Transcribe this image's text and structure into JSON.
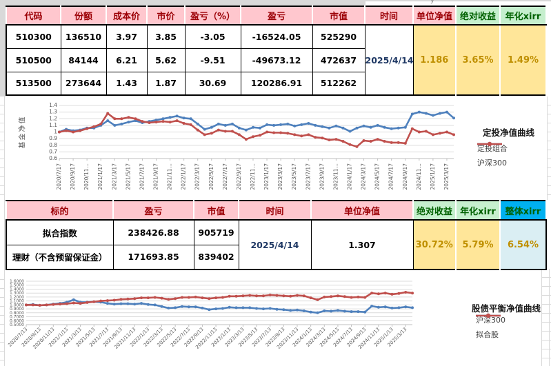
{
  "window": {
    "artifact_top_right": "y"
  },
  "colors": {
    "header_pink": "#FFC7CE",
    "header_red_text": "#9C0006",
    "header_green": "#C6EFCE",
    "green_text": "#006100",
    "overall_header_blue": "#00B0F0",
    "overall_value_bg": "#DAEEF3",
    "value_yellow_bg": "#FFE699",
    "value_orange_text": "#BF8F00",
    "date_text": "#1F3864",
    "series_blue": "#4F81BD",
    "series_red": "#C0504D",
    "gridline": "#D9D9D9"
  },
  "table1": {
    "headers": {
      "code": "代码",
      "shares": "份额",
      "cost": "成本价",
      "price": "市价",
      "pl_pct": "盈亏（%）",
      "pl": "盈亏",
      "mv": "市值",
      "time": "时间",
      "nav": "单位净值",
      "abs": "绝对收益",
      "xirr": "年化xirr"
    },
    "rows": [
      {
        "code": "510300",
        "shares": "136510",
        "cost": "3.97",
        "price": "3.85",
        "pl_pct": "-3.05",
        "pl": "-16524.05",
        "mv": "525290"
      },
      {
        "code": "510500",
        "shares": "84144",
        "cost": "6.21",
        "price": "5.62",
        "pl_pct": "-9.51",
        "pl": "-49673.12",
        "mv": "472637"
      },
      {
        "code": "513500",
        "shares": "273644",
        "cost": "1.43",
        "price": "1.87",
        "pl_pct": "30.69",
        "pl": "120286.91",
        "mv": "512262"
      }
    ],
    "time": "2025/4/14",
    "nav": "1.186",
    "abs": "3.65%",
    "xirr": "1.49%"
  },
  "table2": {
    "headers": {
      "name": "标的",
      "pl": "盈亏",
      "mv": "市值",
      "time": "时间",
      "nav": "单位净值",
      "abs": "绝对收益",
      "xirr": "年化xirr",
      "overall": "整体xirr"
    },
    "rows": [
      {
        "name": "拟合指数",
        "pl": "238426.88",
        "mv": "905719"
      },
      {
        "name": "理财（不含预留保证金）",
        "pl": "171693.85",
        "mv": "839402"
      }
    ],
    "time": "2025/4/14",
    "nav": "1.307",
    "abs": "30.72%",
    "xirr": "5.79%",
    "overall": "6.54%"
  },
  "chart_data": [
    {
      "type": "line",
      "title": "定投净值曲线",
      "ylabel": "基金净值",
      "ylim": [
        0.6,
        1.4
      ],
      "x_total_steps": 57,
      "grid": true,
      "legend_position": "right",
      "yticks": [
        "1.4",
        "1.3",
        "1.2",
        "1.1",
        "1",
        "0.9",
        "0.8",
        "0.7",
        "0.6"
      ],
      "xticklabels": [
        "2020/7/17",
        "2020/9/17",
        "2020/11…",
        "2021/1/17",
        "2021/3/17",
        "2021/5/17",
        "2021/7/17",
        "2021/9/17",
        "2021/11…",
        "2022/1/17",
        "2022/3/17",
        "2022/5/17",
        "2022/7/17",
        "2022/9/17",
        "2022/11…",
        "2023/1/17",
        "2023/3/17",
        "2023/5/17",
        "2023/7/17",
        "2023/9/17",
        "2023/11…",
        "2024/1/17",
        "2024/3/17",
        "2024/5/17",
        "2024/7/17",
        "2024/9/17",
        "2024/11…",
        "2025/1/17",
        "2025/3/17"
      ],
      "series": [
        {
          "name": "定投组合",
          "color": "#4F81BD",
          "values": [
            1.0,
            1.04,
            1.02,
            1.03,
            1.06,
            1.06,
            1.1,
            1.17,
            1.1,
            1.12,
            1.15,
            1.17,
            1.14,
            1.16,
            1.18,
            1.2,
            1.22,
            1.24,
            1.21,
            1.2,
            1.12,
            1.04,
            1.07,
            1.12,
            1.1,
            1.12,
            1.06,
            1.03,
            1.07,
            1.06,
            1.11,
            1.1,
            1.11,
            1.12,
            1.09,
            1.11,
            1.13,
            1.1,
            1.08,
            1.06,
            1.09,
            1.06,
            1.01,
            1.06,
            1.09,
            1.07,
            1.1,
            1.07,
            1.05,
            1.06,
            1.07,
            1.27,
            1.3,
            1.28,
            1.25,
            1.28,
            1.3,
            1.21
          ]
        },
        {
          "name": "沪深300",
          "color": "#C0504D",
          "values": [
            1.0,
            1.02,
            1.0,
            1.02,
            1.05,
            1.08,
            1.12,
            1.28,
            1.2,
            1.2,
            1.22,
            1.2,
            1.16,
            1.14,
            1.15,
            1.16,
            1.15,
            1.17,
            1.13,
            1.11,
            1.03,
            0.96,
            0.98,
            1.03,
            1.01,
            1.01,
            0.96,
            0.89,
            0.93,
            0.95,
            1.0,
            0.99,
            0.99,
            0.98,
            0.96,
            0.94,
            0.96,
            0.92,
            0.91,
            0.88,
            0.89,
            0.86,
            0.81,
            0.78,
            0.87,
            0.86,
            0.89,
            0.86,
            0.84,
            0.84,
            0.83,
            1.05,
            1.0,
            1.01,
            0.96,
            0.98,
            1.0,
            0.96
          ]
        }
      ]
    },
    {
      "type": "line",
      "title": "股债平衡净值曲线",
      "ylabel": "",
      "ylim": [
        0.5,
        1.6
      ],
      "x_total_steps": 57,
      "grid": true,
      "legend_position": "right",
      "yticks": [
        "1.6000",
        "1.5000",
        "1.4000",
        "1.3000",
        "1.2000",
        "1.1000",
        "1.0000",
        "0.9000",
        "0.8000",
        "0.7000",
        "0.6000",
        "0.5000"
      ],
      "xticklabels": [
        "2020/7/13",
        "2020/9/13",
        "2020/11/13",
        "2021/1/13",
        "2021/3/13",
        "2021/5/13",
        "2021/7/13",
        "2021/9/13",
        "2021/11/13",
        "2022/1/13",
        "2022/3/13",
        "2022/5/13",
        "2022/7/13",
        "2022/9/13",
        "2022/11/13",
        "2023/1/13",
        "2023/3/13",
        "2023/5/13",
        "2023/7/13",
        "2023/9/13",
        "2023/11/13",
        "2024/1/13",
        "2024/3/13",
        "2024/5/13",
        "2024/7/13",
        "2024/9/13",
        "2024/11/13",
        "2025/1/13",
        "2025/3/13"
      ],
      "series": [
        {
          "name": "沪深300",
          "color": "#4F81BD",
          "values": [
            1.0,
            1.01,
            0.99,
            1.0,
            1.02,
            1.04,
            1.07,
            1.13,
            1.07,
            1.07,
            1.08,
            1.07,
            1.04,
            1.02,
            1.03,
            1.03,
            1.02,
            1.04,
            1.01,
            1.0,
            0.96,
            0.92,
            0.93,
            0.96,
            0.95,
            0.95,
            0.92,
            0.88,
            0.9,
            0.91,
            0.94,
            0.93,
            0.93,
            0.93,
            0.91,
            0.9,
            0.91,
            0.89,
            0.88,
            0.86,
            0.87,
            0.85,
            0.82,
            0.8,
            0.85,
            0.84,
            0.86,
            0.84,
            0.83,
            0.83,
            0.82,
            0.97,
            0.94,
            0.95,
            0.92,
            0.93,
            0.95,
            0.93
          ]
        },
        {
          "name": "拟合股",
          "color": "#C0504D",
          "values": [
            1.0,
            1.0,
            0.99,
            1.0,
            1.01,
            1.02,
            1.03,
            1.05,
            1.04,
            1.06,
            1.08,
            1.1,
            1.11,
            1.12,
            1.14,
            1.15,
            1.16,
            1.18,
            1.18,
            1.19,
            1.17,
            1.14,
            1.16,
            1.19,
            1.19,
            1.2,
            1.18,
            1.16,
            1.18,
            1.19,
            1.22,
            1.22,
            1.23,
            1.24,
            1.23,
            1.23,
            1.25,
            1.24,
            1.23,
            1.22,
            1.24,
            1.23,
            1.18,
            1.13,
            1.2,
            1.21,
            1.23,
            1.21,
            1.19,
            1.2,
            1.19,
            1.3,
            1.28,
            1.3,
            1.27,
            1.29,
            1.32,
            1.3
          ]
        }
      ]
    }
  ]
}
